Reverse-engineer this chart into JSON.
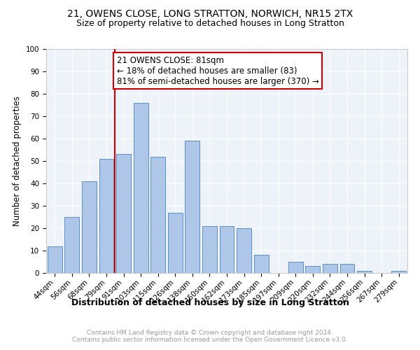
{
  "title1": "21, OWENS CLOSE, LONG STRATTON, NORWICH, NR15 2TX",
  "title2": "Size of property relative to detached houses in Long Stratton",
  "xlabel": "Distribution of detached houses by size in Long Stratton",
  "ylabel": "Number of detached properties",
  "categories": [
    "44sqm",
    "56sqm",
    "68sqm",
    "79sqm",
    "91sqm",
    "103sqm",
    "115sqm",
    "126sqm",
    "138sqm",
    "150sqm",
    "162sqm",
    "173sqm",
    "185sqm",
    "197sqm",
    "209sqm",
    "220sqm",
    "232sqm",
    "244sqm",
    "256sqm",
    "267sqm",
    "279sqm"
  ],
  "values": [
    12,
    25,
    41,
    51,
    53,
    76,
    52,
    27,
    59,
    21,
    21,
    20,
    8,
    0,
    5,
    3,
    4,
    4,
    1,
    0,
    1
  ],
  "bar_color": "#aec6e8",
  "bar_edge_color": "#5a8fc2",
  "vline_index": 3.5,
  "vline_color": "#cc0000",
  "annotation_text": "21 OWENS CLOSE: 81sqm\n← 18% of detached houses are smaller (83)\n81% of semi-detached houses are larger (370) →",
  "annotation_box_color": "#ffffff",
  "annotation_box_edge_color": "#cc0000",
  "ylim": [
    0,
    100
  ],
  "yticks": [
    0,
    10,
    20,
    30,
    40,
    50,
    60,
    70,
    80,
    90,
    100
  ],
  "footnote": "Contains HM Land Registry data © Crown copyright and database right 2024.\nContains public sector information licensed under the Open Government Licence v3.0.",
  "bg_color": "#eef2f9",
  "title1_fontsize": 10,
  "title2_fontsize": 9,
  "xlabel_fontsize": 9,
  "ylabel_fontsize": 8.5,
  "tick_fontsize": 7.5,
  "annotation_fontsize": 8.5,
  "footnote_fontsize": 6.5,
  "footnote_color": "#999999"
}
